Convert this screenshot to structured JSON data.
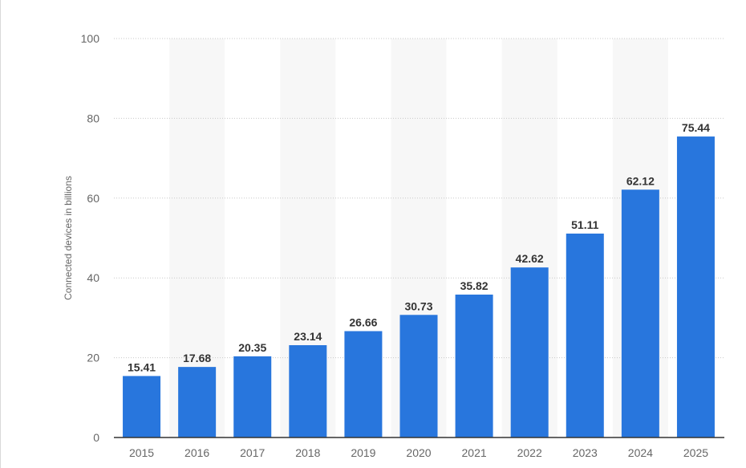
{
  "chart_data": {
    "type": "bar",
    "title": "",
    "xlabel": "",
    "ylabel": "Connected devices in billions",
    "categories": [
      "2015",
      "2016",
      "2017",
      "2018",
      "2019",
      "2020",
      "2021",
      "2022",
      "2023",
      "2024",
      "2025"
    ],
    "values": [
      15.41,
      17.68,
      20.35,
      23.14,
      26.66,
      30.73,
      35.82,
      42.62,
      51.11,
      62.12,
      75.44
    ],
    "value_labels": [
      "15.41",
      "17.68",
      "20.35",
      "23.14",
      "26.66",
      "30.73",
      "35.82",
      "42.62",
      "51.11",
      "62.12",
      "75.44"
    ],
    "ylim": [
      0,
      100
    ],
    "yticks": [
      0,
      20,
      40,
      60,
      80,
      100
    ],
    "ytick_labels": [
      "0",
      "20",
      "40",
      "60",
      "80",
      "100"
    ],
    "grid": true,
    "legend": "none",
    "colors": {
      "bar": "#2876dd",
      "alt_band": "#f7f7f7",
      "gridline": "#c8c8c8",
      "baseline": "#333333"
    }
  }
}
